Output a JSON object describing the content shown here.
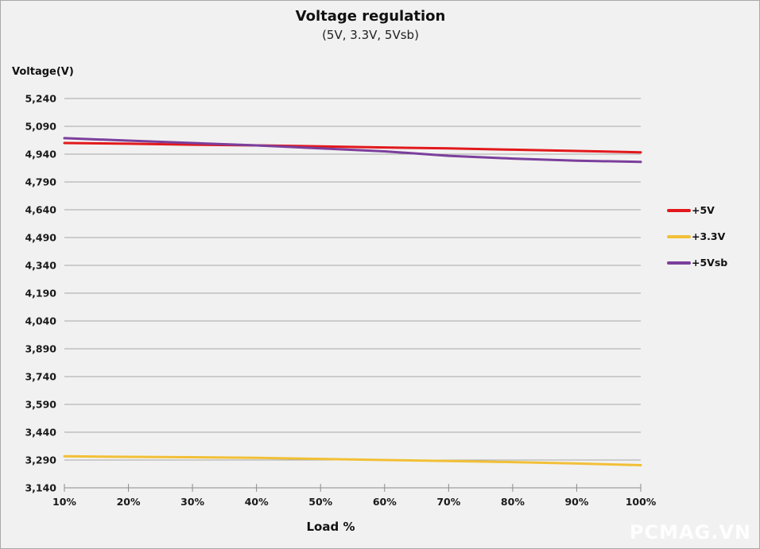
{
  "page": {
    "background_color": "#f1f1f1",
    "border_color": "#a9a9a9",
    "gridline_color": "#a6a6a6",
    "axis_color": "#8c8c8c",
    "text_color": "#1a1a1a"
  },
  "header": {
    "title": "Voltage regulation",
    "subtitle": "(5V, 3.3V, 5Vsb)"
  },
  "axes": {
    "y_title": "Voltage(V)",
    "x_title": "Load %"
  },
  "legend": {
    "items": [
      {
        "label": "+5V",
        "color": "#e2191c"
      },
      {
        "label": "+3.3V",
        "color": "#f2c037"
      },
      {
        "label": "+5Vsb",
        "color": "#7b3f9c"
      }
    ]
  },
  "watermark": "PCMAG.VN",
  "chart_data": {
    "type": "line",
    "title": "Voltage regulation",
    "subtitle": "(5V, 3.3V, 5Vsb)",
    "xlabel": "Load %",
    "ylabel": "Voltage(V)",
    "categories": [
      "10%",
      "20%",
      "30%",
      "40%",
      "50%",
      "60%",
      "70%",
      "80%",
      "90%",
      "100%"
    ],
    "series": [
      {
        "name": "+5V",
        "color": "#e2191c",
        "values": [
          5000,
          4996,
          4991,
          4987,
          4982,
          4976,
          4971,
          4964,
          4957,
          4950
        ]
      },
      {
        "name": "+3.3V",
        "color": "#f2c037",
        "values": [
          3310,
          3307,
          3305,
          3302,
          3296,
          3290,
          3285,
          3279,
          3271,
          3262
        ]
      },
      {
        "name": "+5Vsb",
        "color": "#7b3f9c",
        "values": [
          5026,
          5013,
          5000,
          4987,
          4971,
          4955,
          4931,
          4916,
          4905,
          4898
        ]
      }
    ],
    "ylim": [
      3140,
      5240
    ],
    "y_step": 150,
    "y_tick_labels": [
      "5,240",
      "5,090",
      "4,940",
      "4,790",
      "4,640",
      "4,490",
      "4,340",
      "4,190",
      "4,040",
      "3,890",
      "3,740",
      "3,590",
      "3,440",
      "3,290",
      "3,140"
    ],
    "grid": true,
    "legend_position": "right"
  }
}
